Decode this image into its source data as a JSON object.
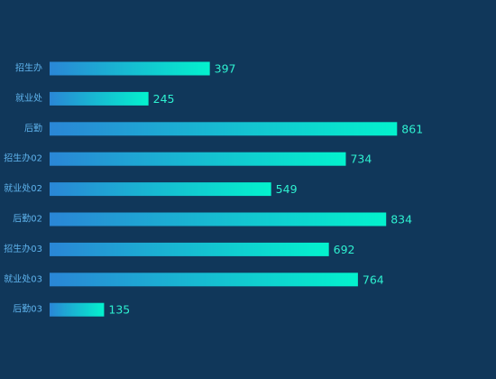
{
  "chart_data": {
    "type": "bar",
    "orientation": "horizontal",
    "categories": [
      "招生办",
      "就业处",
      "后勤",
      "招生办02",
      "就业处02",
      "后勤02",
      "招生办03",
      "就业处03",
      "后勤03"
    ],
    "values": [
      397,
      245,
      861,
      734,
      549,
      834,
      692,
      764,
      135
    ],
    "xlim": [
      0,
      900
    ],
    "grid": false,
    "legend": "none",
    "colors": {
      "background": "#10375a",
      "bar_start": "#2a86d6",
      "bar_end": "#03f2cd",
      "category_label": "#5fb4ee",
      "value_label": "#2ef0d0"
    }
  }
}
